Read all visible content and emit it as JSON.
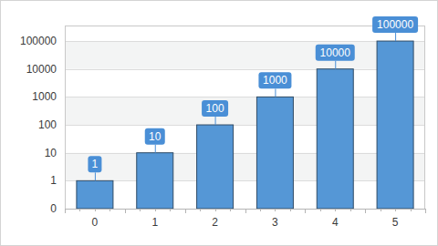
{
  "chart_data": {
    "type": "bar",
    "categories": [
      "0",
      "1",
      "2",
      "3",
      "4",
      "5"
    ],
    "values": [
      1,
      10,
      100,
      1000,
      10000,
      100000
    ],
    "color": "#5597d6",
    "log": "y",
    "ylim": [
      0.1,
      360000
    ],
    "yticks": [
      {
        "value": 0.1,
        "label": "0"
      },
      1,
      10,
      100,
      1000,
      10000,
      100000
    ],
    "grid": true,
    "data_labels": true
  }
}
